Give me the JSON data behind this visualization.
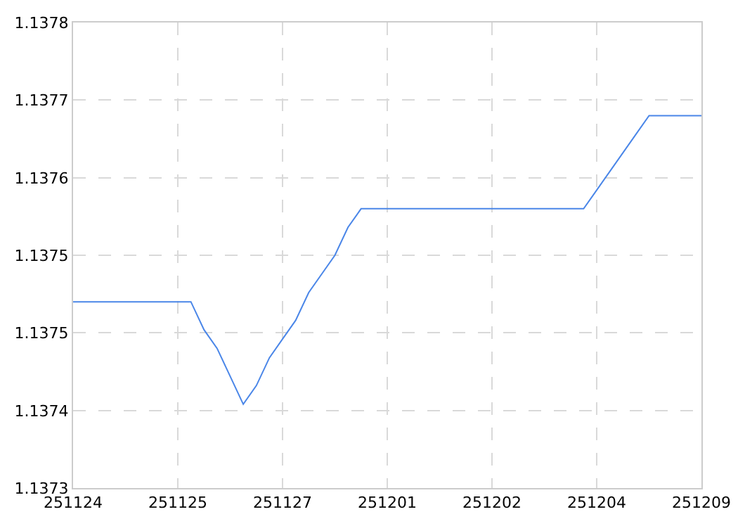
{
  "chart_data": {
    "type": "line",
    "categories": [
      "251124",
      null,
      null,
      null,
      null,
      null,
      null,
      null,
      "251125",
      null,
      null,
      null,
      null,
      null,
      null,
      null,
      "251127",
      null,
      null,
      null,
      null,
      null,
      null,
      null,
      "251201",
      null,
      null,
      null,
      null,
      null,
      null,
      null,
      "251202",
      null,
      null,
      null,
      null,
      null,
      null,
      null,
      "251204",
      null,
      null,
      null,
      null,
      null,
      null,
      null,
      "251209"
    ],
    "series": [
      {
        "color": "#4a86e8",
        "values": [
          1.1375,
          1.1375,
          1.1375,
          1.1375,
          1.1375,
          1.1375,
          1.1375,
          1.1375,
          1.1375,
          1.1375,
          1.13747,
          1.13745,
          1.13742,
          1.13739,
          1.13741,
          1.13744,
          1.13746,
          1.13748,
          1.13751,
          1.13753,
          1.13755,
          1.13758,
          1.1376,
          1.1376,
          1.1376,
          1.1376,
          1.1376,
          1.1376,
          1.1376,
          1.1376,
          1.1376,
          1.1376,
          1.1376,
          1.1376,
          1.1376,
          1.1376,
          1.1376,
          1.1376,
          1.1376,
          1.1376,
          1.13762,
          1.13764,
          1.13766,
          1.13768,
          1.1377,
          1.1377,
          1.1377,
          1.1377,
          1.1377
        ]
      }
    ],
    "ylim": [
      1.1373,
      1.1378
    ],
    "yticks": [
      {
        "value": 1.1373,
        "label": "1.1373"
      },
      {
        "value": 1.137383,
        "label": "1.1374"
      },
      {
        "value": 1.137467,
        "label": "1.1375"
      },
      {
        "value": 1.13755,
        "label": "1.1375"
      },
      {
        "value": 1.137633,
        "label": "1.1376"
      },
      {
        "value": 1.137717,
        "label": "1.1377"
      },
      {
        "value": 1.1378,
        "label": "1.1378"
      }
    ],
    "grid": true,
    "marker": "none",
    "line_style": "solid"
  }
}
